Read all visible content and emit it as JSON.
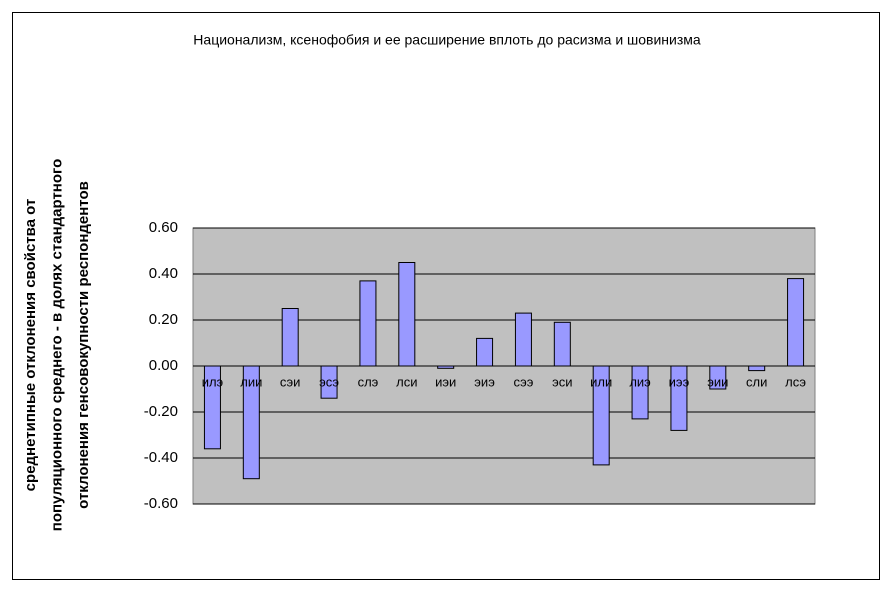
{
  "chart_data": {
    "type": "bar",
    "title": "Национализм, ксенофобия и ее расширение вплоть до расизма и шовинизма",
    "ylabel": [
      "среднетипные отклонения свойства от",
      "популяционного среднего - в долях стандартного",
      "отклонения генсовокупности респондентов"
    ],
    "categories": [
      "илэ",
      "лии",
      "сэи",
      "эсэ",
      "слэ",
      "лси",
      "иэи",
      "эиэ",
      "сээ",
      "эси",
      "или",
      "лиэ",
      "иээ",
      "эии",
      "сли",
      "лсэ"
    ],
    "values": [
      -0.36,
      -0.49,
      0.25,
      -0.14,
      0.37,
      0.45,
      -0.01,
      0.12,
      0.23,
      0.19,
      -0.43,
      -0.23,
      -0.28,
      -0.1,
      -0.02,
      0.38
    ],
    "color": "#9999ff",
    "ylim": [
      -0.6,
      0.6
    ],
    "yticks": [
      {
        "value": -0.6,
        "label": "-0.60"
      },
      {
        "value": -0.4,
        "label": "-0.40"
      },
      {
        "value": -0.2,
        "label": "-0.20"
      },
      {
        "value": 0,
        "label": "0.00"
      },
      {
        "value": 0.2,
        "label": "0.20"
      },
      {
        "value": 0.4,
        "label": "0.40"
      },
      {
        "value": 0.6,
        "label": "0.60"
      }
    ],
    "grid": true
  }
}
